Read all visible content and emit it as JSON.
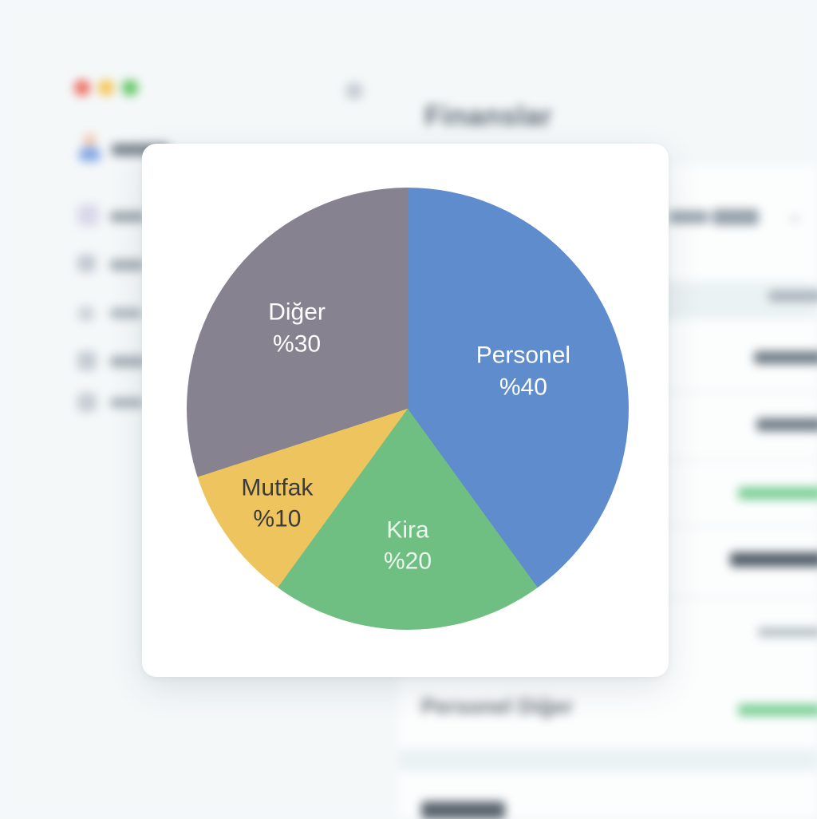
{
  "window": {
    "controls": [
      {
        "name": "close",
        "color": "#ef6a5e"
      },
      {
        "name": "minimize",
        "color": "#f5c451"
      },
      {
        "name": "zoom",
        "color": "#5ec45f"
      }
    ]
  },
  "header": {
    "title": "Finanslar"
  },
  "toolbar": {
    "dropdown_chevron": "⌄"
  },
  "table": {
    "visible_row_label": "Personel Diğer"
  },
  "colors": {
    "positive_value_green": "#7ccf96"
  },
  "chart_data": {
    "type": "pie",
    "title": "",
    "direction": "clockwise",
    "start_angle_deg": 0,
    "legend": "none",
    "slices": [
      {
        "name": "Personel",
        "value": 40,
        "pct_label": "%40",
        "color": "#5f8ccd",
        "text_color": "#ffffff",
        "label_radius": 0.55
      },
      {
        "name": "Kira",
        "value": 20,
        "pct_label": "%20",
        "color": "#6fbe82",
        "text_color": "#e9f7ec",
        "label_radius": 0.62
      },
      {
        "name": "Mutfak",
        "value": 10,
        "pct_label": "%10",
        "color": "#eec45e",
        "text_color": "#3b3b3d",
        "label_radius": 0.73
      },
      {
        "name": "Diğer",
        "value": 30,
        "pct_label": "%30",
        "color": "#86828f",
        "text_color": "#ffffff",
        "label_radius": 0.62
      }
    ]
  }
}
